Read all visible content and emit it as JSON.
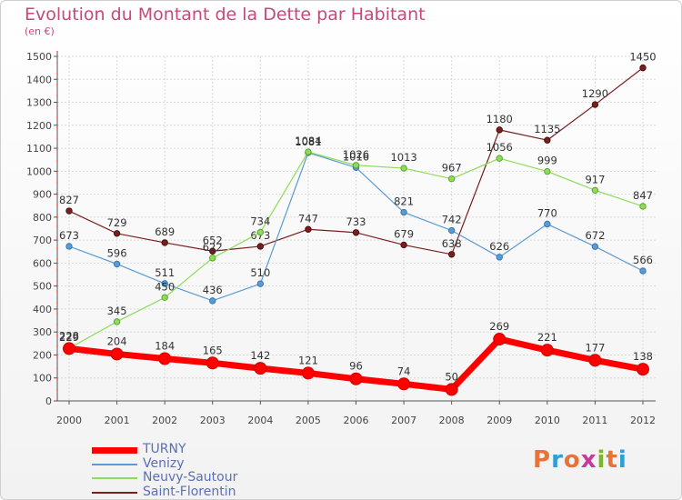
{
  "header": {
    "title": "Evolution du Montant de la Dette par Habitant",
    "subtitle": "(en €)"
  },
  "logo": {
    "text": "Proxiti",
    "colors": [
      "#e8733a",
      "#2e9fd6",
      "#e8733a",
      "#c43c9b",
      "#7ab829",
      "#e8733a",
      "#2e9fd6"
    ]
  },
  "chart_data": {
    "type": "line",
    "x": [
      "2000",
      "2001",
      "2002",
      "2003",
      "2004",
      "2005",
      "2006",
      "2007",
      "2008",
      "2009",
      "2010",
      "2011",
      "2012"
    ],
    "ylim": [
      0,
      1500
    ],
    "yticks": [
      0,
      100,
      200,
      300,
      400,
      500,
      600,
      700,
      800,
      900,
      1000,
      1100,
      1200,
      1300,
      1400,
      1500
    ],
    "grid": true,
    "legend_position": "bottom-left",
    "series": [
      {
        "name": "TURNY",
        "color": "#ff0000",
        "values": [
          228,
          204,
          184,
          165,
          142,
          121,
          96,
          74,
          50,
          269,
          221,
          177,
          138
        ]
      },
      {
        "name": "Venizy",
        "color": "#5b9bd5",
        "values": [
          673,
          596,
          511,
          436,
          510,
          1081,
          1016,
          821,
          742,
          626,
          770,
          672,
          566
        ]
      },
      {
        "name": "Neuvy-Sautour",
        "color": "#8fdb5a",
        "values": [
          229,
          345,
          450,
          622,
          734,
          1084,
          1026,
          1013,
          967,
          1056,
          999,
          917,
          847
        ]
      },
      {
        "name": "Saint-Florentin",
        "color": "#7b1e1e",
        "values": [
          827,
          729,
          689,
          652,
          673,
          747,
          733,
          679,
          638,
          1180,
          1135,
          1290,
          1450
        ]
      }
    ]
  }
}
